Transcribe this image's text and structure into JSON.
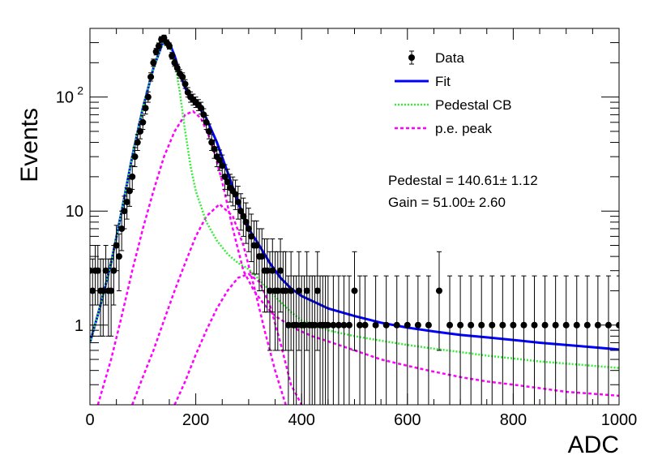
{
  "chart_data": {
    "type": "scatter",
    "xlabel": "ADC",
    "ylabel": "Events",
    "xlim": [
      0,
      1000
    ],
    "ylim": [
      0.2,
      400
    ],
    "y_scale": "log",
    "grid": false,
    "legend_position": "top-right",
    "x_ticks": [
      {
        "value": 0,
        "label": "0"
      },
      {
        "value": 200,
        "label": "200"
      },
      {
        "value": 400,
        "label": "400"
      },
      {
        "value": 600,
        "label": "600"
      },
      {
        "value": 800,
        "label": "800"
      },
      {
        "value": 1000,
        "label": "1000"
      }
    ],
    "y_ticks": [
      {
        "value": 1,
        "base": "1",
        "exp": ""
      },
      {
        "value": 10,
        "base": "10",
        "exp": ""
      },
      {
        "value": 100,
        "base": "10",
        "exp": "2"
      }
    ],
    "legend": [
      {
        "label": "Data",
        "style": "marker"
      },
      {
        "label": "Fit",
        "style": "solid",
        "color": "#0000ff"
      },
      {
        "label": "Pedestal CB",
        "style": "dotted",
        "color": "#33ee33"
      },
      {
        "label": "p.e. peak",
        "style": "dashed",
        "color": "#ff00ff"
      }
    ],
    "stats": [
      {
        "text": "Pedestal = 140.61± 1.12"
      },
      {
        "text": "Gain = 51.00± 2.60"
      }
    ],
    "series": [
      {
        "name": "Data",
        "kind": "points_with_errors",
        "color": "#000000",
        "x": [
          0,
          5,
          10,
          15,
          20,
          25,
          30,
          35,
          40,
          45,
          50,
          55,
          60,
          65,
          70,
          75,
          80,
          85,
          90,
          95,
          100,
          105,
          110,
          115,
          120,
          125,
          130,
          135,
          140,
          145,
          150,
          155,
          160,
          165,
          170,
          175,
          180,
          185,
          190,
          195,
          200,
          205,
          210,
          215,
          220,
          225,
          230,
          235,
          240,
          245,
          250,
          255,
          260,
          265,
          270,
          275,
          280,
          285,
          290,
          295,
          300,
          305,
          310,
          315,
          320,
          325,
          330,
          335,
          340,
          345,
          350,
          355,
          360,
          365,
          370,
          375,
          380,
          385,
          390,
          395,
          400,
          405,
          410,
          415,
          420,
          425,
          430,
          435,
          440,
          445,
          450,
          460,
          470,
          480,
          490,
          500,
          510,
          520,
          540,
          560,
          580,
          600,
          620,
          640,
          660,
          680,
          700,
          720,
          740,
          760,
          780,
          800,
          820,
          840,
          860,
          880,
          900,
          920,
          940,
          960,
          980,
          1000
        ],
        "y": [
          3,
          2,
          3,
          3,
          2,
          2,
          3,
          2,
          2,
          3,
          5,
          4,
          7,
          10,
          12,
          15,
          20,
          30,
          40,
          50,
          60,
          80,
          100,
          150,
          200,
          250,
          280,
          320,
          330,
          300,
          280,
          230,
          200,
          180,
          160,
          150,
          130,
          110,
          100,
          95,
          90,
          85,
          80,
          70,
          60,
          50,
          40,
          35,
          30,
          28,
          25,
          20,
          18,
          16,
          15,
          14,
          12,
          10,
          9,
          8,
          7,
          6,
          5,
          5,
          4,
          4,
          3,
          3,
          2,
          3,
          2,
          2,
          3,
          2,
          2,
          1,
          2,
          1,
          1,
          2,
          1,
          1,
          2,
          1,
          1,
          1,
          2,
          1,
          1,
          1,
          1,
          1,
          1,
          1,
          1,
          2,
          1,
          1,
          1,
          1,
          1,
          1,
          1,
          1,
          2,
          1,
          1,
          1,
          1,
          1,
          1,
          1,
          1,
          1,
          1,
          1,
          1,
          1,
          1,
          1,
          1,
          1
        ],
        "err_low": [
          1.5,
          1.2,
          1.5,
          1.5,
          1.2,
          1.2,
          1.5,
          1.2,
          1.2,
          1.5,
          2,
          2,
          2.5,
          3,
          3.5,
          4,
          4.5,
          5.5,
          6,
          7,
          8,
          9,
          10,
          12,
          14,
          16,
          17,
          18,
          18,
          17,
          17,
          15,
          14,
          13,
          13,
          12,
          11,
          10,
          10,
          10,
          9,
          9,
          9,
          8,
          8,
          7,
          6,
          6,
          5.5,
          5.3,
          5,
          4.5,
          4.3,
          4,
          3.9,
          3.7,
          3.5,
          3.2,
          3,
          2.8,
          2.6,
          2.4,
          2.2,
          2.2,
          2,
          2,
          1.7,
          1.7,
          1.4,
          1.7,
          1.4,
          1.4,
          1.7,
          1.4,
          1.4,
          1,
          1.4,
          1,
          1,
          1.4,
          1,
          1,
          1.4,
          1,
          1,
          1,
          1.4,
          1,
          1,
          1,
          1,
          1,
          1,
          1,
          1,
          1.4,
          1,
          1,
          1,
          1,
          1,
          1,
          1,
          1,
          1.4,
          1,
          1,
          1,
          1,
          1,
          1,
          1,
          1,
          1,
          1,
          1,
          1,
          1,
          1,
          1,
          1,
          1
        ],
        "err_high": [
          2,
          1.8,
          2,
          2,
          1.8,
          1.8,
          2,
          1.8,
          1.8,
          2,
          2.5,
          2.3,
          3,
          3.5,
          4,
          4.5,
          5,
          6,
          7,
          8,
          9,
          10,
          11,
          13,
          15,
          17,
          18,
          19,
          19,
          18,
          18,
          16,
          15,
          14,
          14,
          13,
          12,
          11,
          11,
          11,
          10,
          10,
          10,
          9,
          9,
          8,
          7,
          7,
          6.5,
          6.3,
          6,
          5.5,
          5.3,
          5,
          4.9,
          4.7,
          4.5,
          4.2,
          4,
          3.8,
          3.6,
          3.4,
          3.2,
          3.2,
          3,
          3,
          2.7,
          2.7,
          2.4,
          2.7,
          2.4,
          2.4,
          2.7,
          2.4,
          2.4,
          1.7,
          2.4,
          1.7,
          1.7,
          2.4,
          1.7,
          1.7,
          2.4,
          1.7,
          1.7,
          1.7,
          2.4,
          1.7,
          1.7,
          1.7,
          1.7,
          1.7,
          1.7,
          1.7,
          1.7,
          2.4,
          1.7,
          1.7,
          1.7,
          1.7,
          1.7,
          1.7,
          1.7,
          1.7,
          2.4,
          1.7,
          1.7,
          1.7,
          1.7,
          1.7,
          1.7,
          1.7,
          1.7,
          1.7,
          1.7,
          1.7,
          1.7,
          1.7,
          1.7,
          1.7,
          1.7,
          1.7
        ]
      },
      {
        "name": "Fit",
        "kind": "line",
        "style": "solid",
        "color": "#0000ff",
        "x": [
          0,
          20,
          40,
          60,
          80,
          100,
          120,
          140,
          150,
          160,
          170,
          180,
          190,
          200,
          220,
          240,
          260,
          280,
          300,
          320,
          340,
          360,
          380,
          400,
          450,
          500,
          550,
          600,
          650,
          700,
          750,
          800,
          850,
          900,
          950,
          1000
        ],
        "y": [
          0.7,
          1.5,
          3.5,
          10,
          30,
          80,
          180,
          320,
          300,
          230,
          160,
          120,
          100,
          90,
          65,
          40,
          22,
          12,
          7,
          5,
          3.5,
          2.6,
          2.1,
          1.8,
          1.4,
          1.2,
          1.05,
          0.95,
          0.88,
          0.82,
          0.78,
          0.74,
          0.7,
          0.67,
          0.64,
          0.61
        ]
      },
      {
        "name": "Pedestal CB",
        "kind": "line",
        "style": "dotted",
        "color": "#33ee33",
        "x": [
          0,
          20,
          40,
          60,
          80,
          100,
          120,
          140,
          150,
          160,
          170,
          180,
          190,
          200,
          220,
          240,
          260,
          280,
          300,
          320,
          340,
          360,
          380,
          400,
          450,
          500,
          550,
          600,
          650,
          700,
          750,
          800,
          850,
          900,
          950,
          1000
        ],
        "y": [
          0.7,
          1.5,
          3.5,
          10,
          30,
          80,
          180,
          320,
          290,
          200,
          110,
          50,
          25,
          15,
          8,
          5.5,
          4.2,
          3.5,
          3.1,
          2.5,
          2.0,
          1.6,
          1.3,
          1.1,
          0.9,
          0.8,
          0.73,
          0.67,
          0.62,
          0.58,
          0.54,
          0.51,
          0.48,
          0.46,
          0.44,
          0.42
        ]
      },
      {
        "name": "p.e. peak",
        "kind": "lines",
        "style": "dashed",
        "color": "#ff00ff",
        "curves": [
          {
            "x": [
              15,
              40,
              60,
              80,
              100,
              120,
              140,
              160,
              180,
              195,
              210,
              230,
              250,
              270,
              290,
              310,
              330,
              350,
              370,
              390,
              420,
              450,
              500,
              550,
              600,
              650,
              700,
              750,
              800,
              850,
              900,
              950,
              1000
            ],
            "y": [
              0.2,
              0.5,
              1.2,
              3,
              7,
              15,
              30,
              50,
              70,
              75,
              65,
              40,
              18,
              7,
              3,
              2,
              1.5,
              1.2,
              1.05,
              0.92,
              0.8,
              0.72,
              0.6,
              0.5,
              0.44,
              0.39,
              0.35,
              0.32,
              0.3,
              0.28,
              0.26,
              0.25,
              0.24
            ]
          },
          {
            "x": [
              80,
              100,
              120,
              140,
              160,
              180,
              200,
              220,
              245,
              270,
              290,
              310,
              330,
              350,
              370
            ],
            "y": [
              0.2,
              0.35,
              0.6,
              1.1,
              2,
              3.5,
              6,
              9,
              11.5,
              9,
              5,
              2.2,
              0.9,
              0.4,
              0.2
            ]
          },
          {
            "x": [
              160,
              180,
              200,
              220,
              240,
              260,
              280,
              300,
              320,
              340,
              360,
              380,
              400
            ],
            "y": [
              0.2,
              0.32,
              0.55,
              0.9,
              1.4,
              2,
              2.6,
              2.8,
              2.4,
              1.5,
              0.7,
              0.3,
              0.2
            ]
          }
        ]
      }
    ]
  }
}
